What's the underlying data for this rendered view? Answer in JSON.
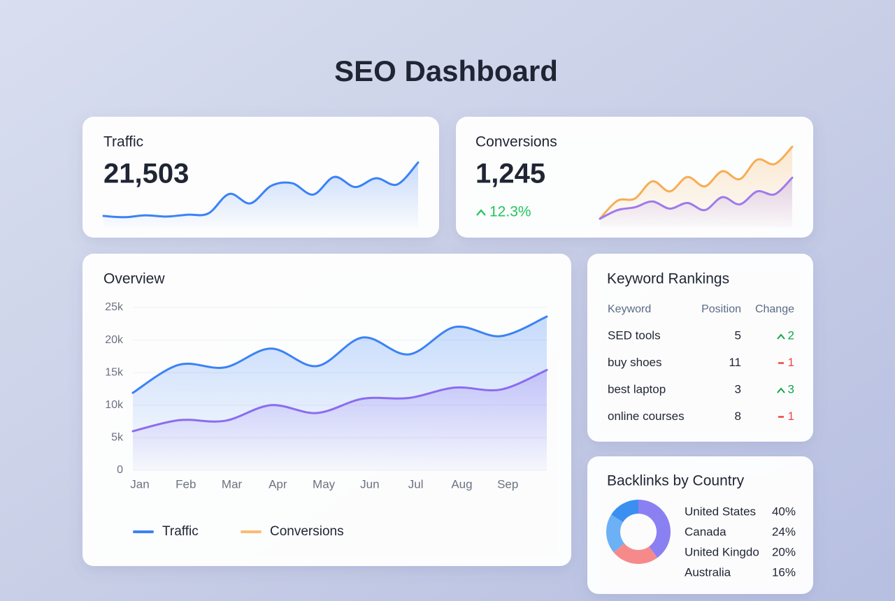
{
  "title": "SEO Dashboard",
  "traffic": {
    "label": "Traffic",
    "value": "21,503"
  },
  "conversions": {
    "label": "Conversions",
    "value": "1,245",
    "change": "12.3%"
  },
  "keywords": {
    "title": "Keyword Rankings",
    "columns": [
      "Keyword",
      "Position",
      "Change"
    ],
    "rows": [
      {
        "keyword": "SED tools",
        "position": 5,
        "change": 2,
        "trend": "up"
      },
      {
        "keyword": "buy shoes",
        "position": 11,
        "change": 1,
        "trend": "down"
      },
      {
        "keyword": "best laptop",
        "position": 3,
        "change": 3,
        "trend": "up"
      },
      {
        "keyword": "online courses",
        "position": 8,
        "change": 1,
        "trend": "down"
      }
    ]
  },
  "chart_data": [
    {
      "type": "sparkline",
      "ylim": [
        0,
        100
      ],
      "area": true,
      "series": [
        {
          "color": "#3b82f6",
          "values": [
            10,
            8,
            11,
            9,
            12,
            14,
            45,
            30,
            58,
            62,
            44,
            72,
            56,
            70,
            60,
            95
          ]
        }
      ]
    },
    {
      "type": "sparkline",
      "ylim": [
        0,
        100
      ],
      "area": true,
      "series": [
        {
          "color": "#f6ad55",
          "values": [
            0,
            25,
            28,
            52,
            38,
            58,
            45,
            66,
            55,
            82,
            76,
            100
          ]
        },
        {
          "color": "#9f7aea",
          "values": [
            0,
            12,
            16,
            24,
            14,
            22,
            12,
            30,
            20,
            38,
            34,
            57
          ]
        }
      ]
    },
    {
      "type": "line",
      "title": "Overview",
      "grid": true,
      "area": true,
      "categories": [
        "Jan",
        "Feb",
        "Mar",
        "Apr",
        "May",
        "Jun",
        "Jul",
        "Aug",
        "Sep",
        null
      ],
      "ylim": [
        0,
        25000
      ],
      "yticks": [
        0,
        {
          "value": 5000,
          "label": "5k"
        },
        {
          "value": 10000,
          "label": "10k"
        },
        {
          "value": 15000,
          "label": "15k"
        },
        {
          "value": 20000,
          "label": "20k"
        },
        {
          "value": 25000,
          "label": "25k"
        }
      ],
      "series": [
        {
          "name": "Traffic",
          "color": "#3b82f6",
          "values": [
            11900,
            16200,
            15800,
            18700,
            16000,
            20400,
            17800,
            22000,
            20600,
            23600
          ]
        },
        {
          "name": "Conversions",
          "color": "#8b6cf0",
          "legend_color": "#fdba74",
          "values": [
            6000,
            7700,
            7600,
            10000,
            8800,
            11000,
            11100,
            12700,
            12400,
            15400
          ]
        }
      ]
    },
    {
      "type": "pie",
      "title": "Backlinks by Country",
      "donut": true,
      "categories": [
        "United States",
        "Canada",
        "United Kingdo",
        "Australia"
      ],
      "values": [
        40,
        24,
        20,
        16
      ],
      "value_labels": [
        "40%",
        "24%",
        "20%",
        "16%"
      ],
      "colors": [
        "#8b80f2",
        "#f68a8a",
        "#6cb0f5",
        "#3b8ff0"
      ]
    }
  ]
}
